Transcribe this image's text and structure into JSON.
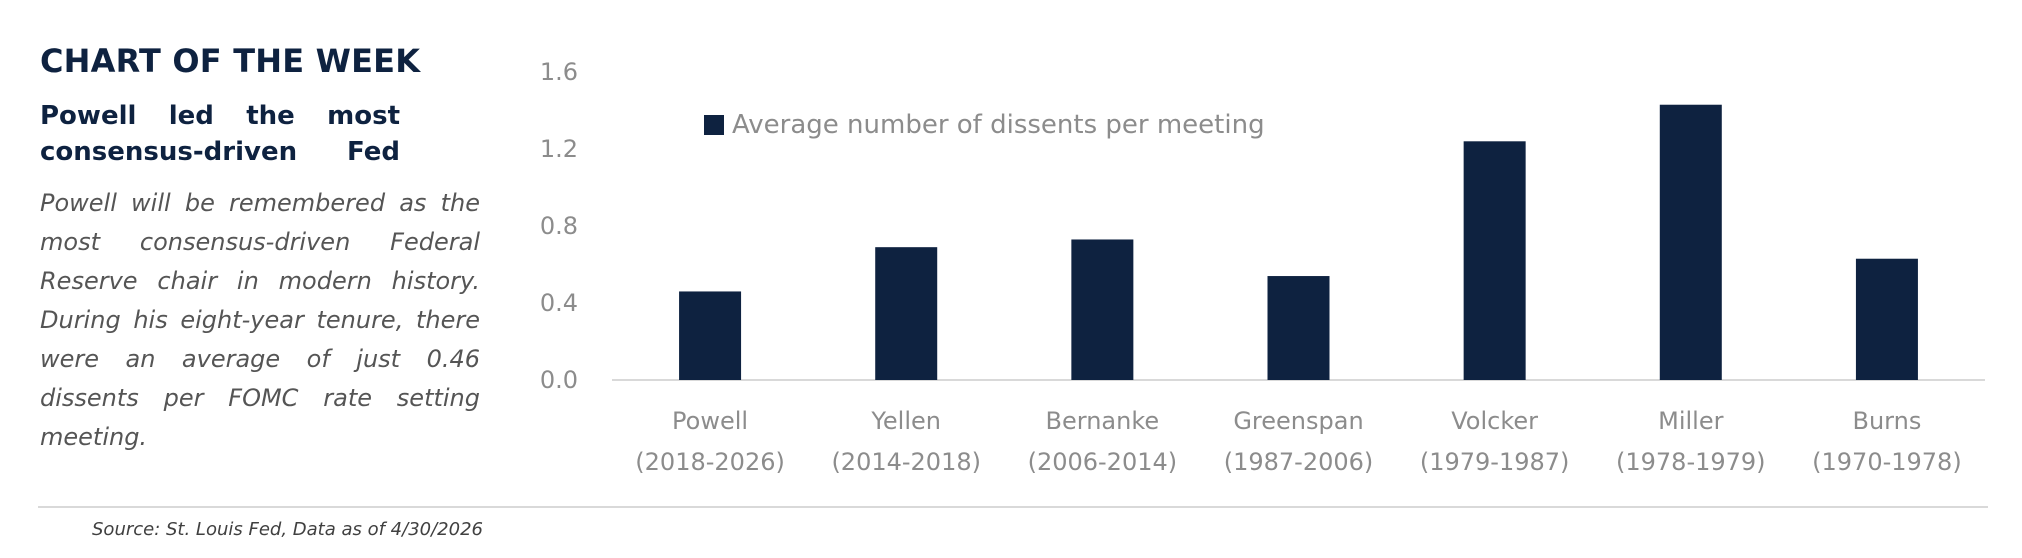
{
  "header": {
    "title": "CHART OF THE WEEK",
    "subtitle": "Powell led the most consensus-driven Fed",
    "body": "Powell will be remembered as the most consensus-driven Federal Reserve chair in modern history. During his eight-year tenure, there were an average of just 0.46 dissents per FOMC rate setting meeting."
  },
  "footer": {
    "source": "Source: St. Louis Fed, Data as of 4/30/2026"
  },
  "chart_data": {
    "type": "bar",
    "categories": [
      [
        "Powell",
        "(2018-2026)"
      ],
      [
        "Yellen",
        "(2014-2018)"
      ],
      [
        "Bernanke",
        "(2006-2014)"
      ],
      [
        "Greenspan",
        "(1987-2006)"
      ],
      [
        "Volcker",
        "(1979-1987)"
      ],
      [
        "Miller",
        "(1978-1979)"
      ],
      [
        "Burns",
        "(1970-1978)"
      ]
    ],
    "series": [
      {
        "name": "Average number of dissents per meeting",
        "values": [
          0.46,
          0.69,
          0.73,
          0.54,
          1.24,
          1.43,
          0.63
        ],
        "color": "#0e2240"
      }
    ],
    "ylim": [
      0,
      1.6
    ],
    "yticks": [
      "0.0",
      "0.4",
      "0.8",
      "1.2",
      "1.6"
    ],
    "ytick_values": [
      0,
      0.4,
      0.8,
      1.2,
      1.6
    ],
    "legend_position": "top-left",
    "grid": false,
    "colors": {
      "bar": "#0e2240",
      "axis": "#d9d9d9",
      "tick_text": "#8c8c8c"
    }
  }
}
